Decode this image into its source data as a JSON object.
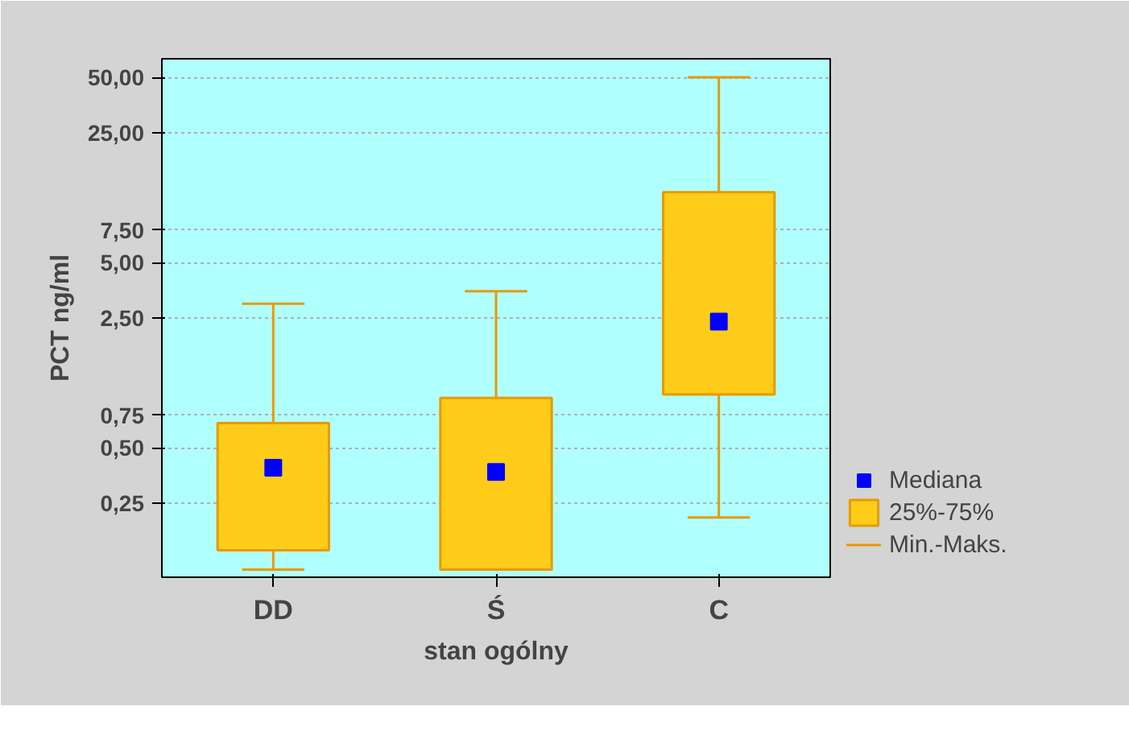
{
  "chart_data": {
    "type": "box",
    "xlabel": "stan ogólny",
    "ylabel": "PCT ng/ml",
    "categories": [
      "DD",
      "Ś",
      "C"
    ],
    "series": [
      {
        "name": "Mediana",
        "type": "scatter",
        "color": "#0000ff",
        "marker": "square",
        "x": [
          "DD",
          "Ś",
          "C"
        ],
        "values": [
          0.39,
          0.37,
          2.4
        ]
      },
      {
        "name": "25%-75%",
        "color": "#ffcc1a",
        "boxes": [
          {
            "low": 0.11,
            "q1": 0.14,
            "q3": 0.68,
            "high": 3.0
          },
          {
            "low": 0.11,
            "q1": 0.11,
            "q3": 0.93,
            "high": 3.5
          },
          {
            "low": 0.21,
            "q1": 0.97,
            "q3": 12,
            "high": 50
          }
        ]
      }
    ],
    "annotations": [
      "Min.-Maks."
    ],
    "log": true,
    "ylim": [
      0.1,
      63
    ],
    "yticks": [
      {
        "value": 0.25,
        "label": "0,25"
      },
      {
        "value": 0.5,
        "label": "0,50"
      },
      {
        "value": 0.75,
        "label": "0,75"
      },
      {
        "value": 2.5,
        "label": "2,50"
      },
      {
        "value": 5,
        "label": "5,00"
      },
      {
        "value": 7.5,
        "label": "7,50"
      },
      {
        "value": 25,
        "label": "25,00"
      },
      {
        "value": 50,
        "label": "50,00"
      }
    ],
    "grid": "y",
    "legend": "bottom right"
  }
}
